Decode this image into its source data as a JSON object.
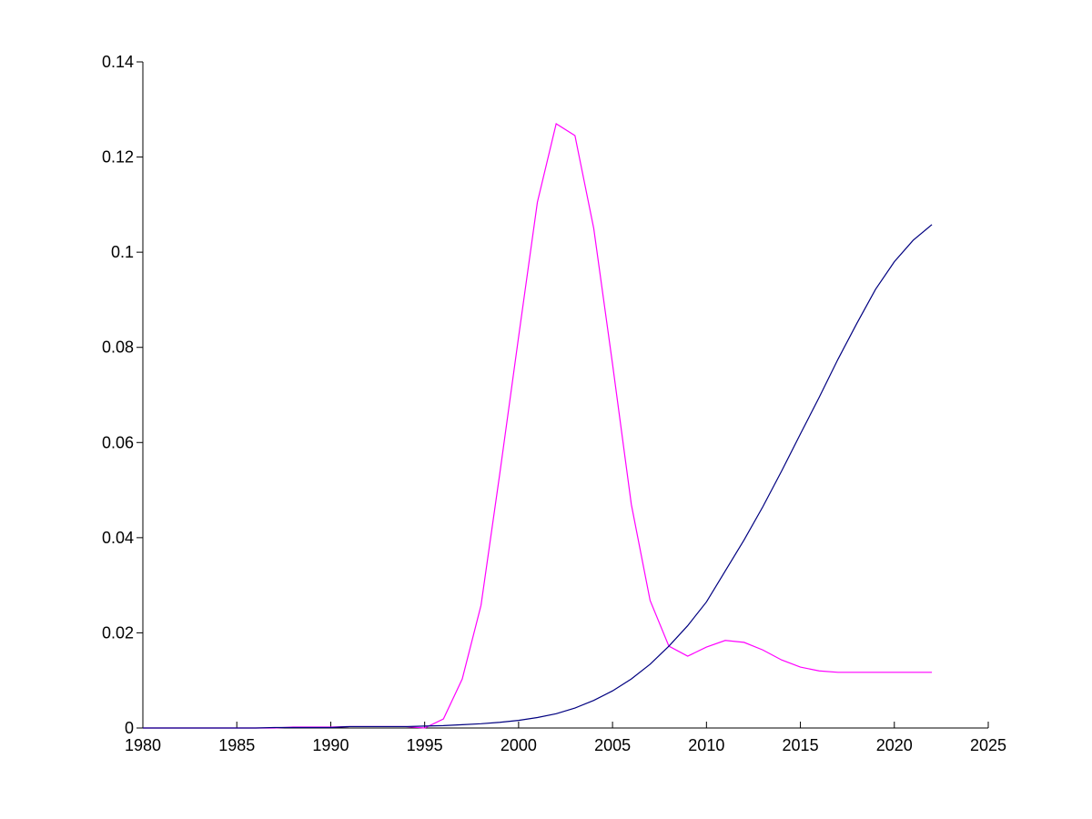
{
  "chart_data": {
    "type": "line",
    "x": [
      1980,
      1981,
      1982,
      1983,
      1984,
      1985,
      1986,
      1987,
      1988,
      1989,
      1990,
      1991,
      1992,
      1993,
      1994,
      1995,
      1996,
      1997,
      1998,
      1999,
      2000,
      2001,
      2002,
      2003,
      2004,
      2005,
      2006,
      2007,
      2008,
      2009,
      2010,
      2011,
      2012,
      2013,
      2014,
      2015,
      2016,
      2017,
      2018,
      2019,
      2020,
      2021,
      2022
    ],
    "series": [
      {
        "color": "#ff00ff",
        "values": [
          0,
          0,
          0,
          0,
          0,
          0,
          0,
          0,
          0.0002,
          0.0002,
          0.0002,
          0.0003,
          0.0003,
          0.0003,
          0.0003,
          0,
          0.0019,
          0.0103,
          0.0258,
          0.0535,
          0.0822,
          0.1105,
          0.127,
          0.1245,
          0.105,
          0.0765,
          0.047,
          0.0268,
          0.0172,
          0.0151,
          0.017,
          0.0184,
          0.018,
          0.0164,
          0.0143,
          0.0128,
          0.012,
          0.0117,
          0.0117,
          0.0117,
          0.0117,
          0.0117,
          0.0117
        ]
      },
      {
        "color": "#000080",
        "values": [
          0,
          0,
          0,
          0,
          0,
          0,
          0,
          0.0001,
          0.0001,
          0.0001,
          0.0001,
          0.0003,
          0.0003,
          0.0003,
          0.0003,
          0.0004,
          0.0005,
          0.0007,
          0.0009,
          0.0012,
          0.0016,
          0.0022,
          0.003,
          0.0042,
          0.0058,
          0.0078,
          0.0103,
          0.0134,
          0.0172,
          0.0215,
          0.0265,
          0.033,
          0.0395,
          0.0465,
          0.054,
          0.0618,
          0.0695,
          0.0775,
          0.085,
          0.0922,
          0.098,
          0.1025,
          0.1058
        ]
      }
    ],
    "xlim": [
      1980,
      2025
    ],
    "xticks": [
      1980,
      1985,
      1990,
      1995,
      2000,
      2005,
      2010,
      2015,
      2020,
      2025
    ],
    "ylim": [
      0,
      0.14
    ],
    "yticks": [
      0,
      0.02,
      0.04,
      0.06,
      0.08,
      0.1,
      0.12,
      0.14
    ]
  }
}
